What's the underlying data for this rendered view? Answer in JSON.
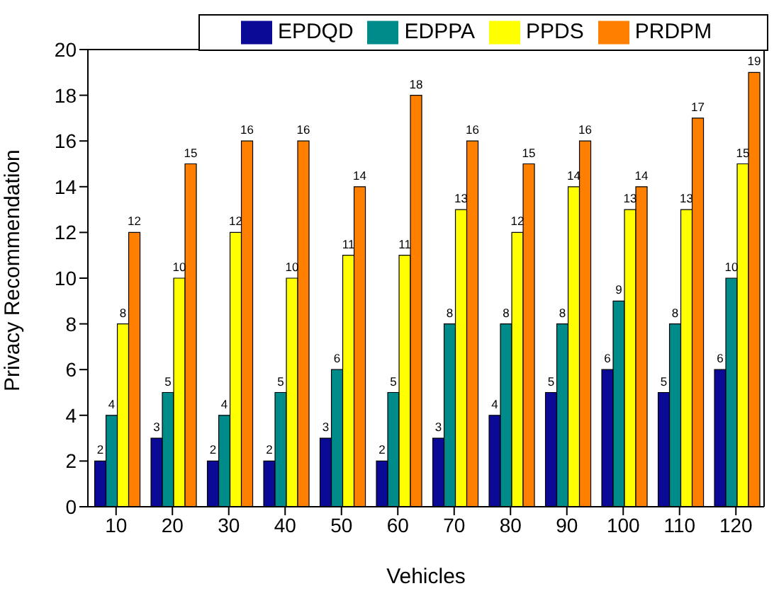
{
  "chart_data": {
    "type": "bar",
    "xlabel": "Vehicles",
    "ylabel": "Privacy Recommendation",
    "categories": [
      "10",
      "20",
      "30",
      "40",
      "50",
      "60",
      "70",
      "80",
      "90",
      "100",
      "110",
      "120"
    ],
    "series": [
      {
        "name": "EPDQD",
        "color": "#0a0a96",
        "values": [
          2,
          3,
          2,
          2,
          3,
          2,
          3,
          4,
          5,
          6,
          5,
          6
        ]
      },
      {
        "name": "EDPPA",
        "color": "#008b8b",
        "values": [
          4,
          5,
          4,
          5,
          6,
          5,
          8,
          8,
          8,
          9,
          8,
          10
        ]
      },
      {
        "name": "PPDS",
        "color": "#ffff00",
        "values": [
          8,
          10,
          12,
          10,
          11,
          11,
          13,
          12,
          14,
          13,
          13,
          15
        ]
      },
      {
        "name": "PRDPM",
        "color": "#ff8000",
        "values": [
          12,
          15,
          16,
          16,
          14,
          18,
          16,
          15,
          16,
          14,
          17,
          19
        ]
      }
    ],
    "ylim": [
      0,
      20
    ],
    "yticks": [
      0,
      2,
      4,
      6,
      8,
      10,
      12,
      14,
      16,
      18,
      20
    ],
    "data_labels": true,
    "legend": "top",
    "grid": false
  }
}
